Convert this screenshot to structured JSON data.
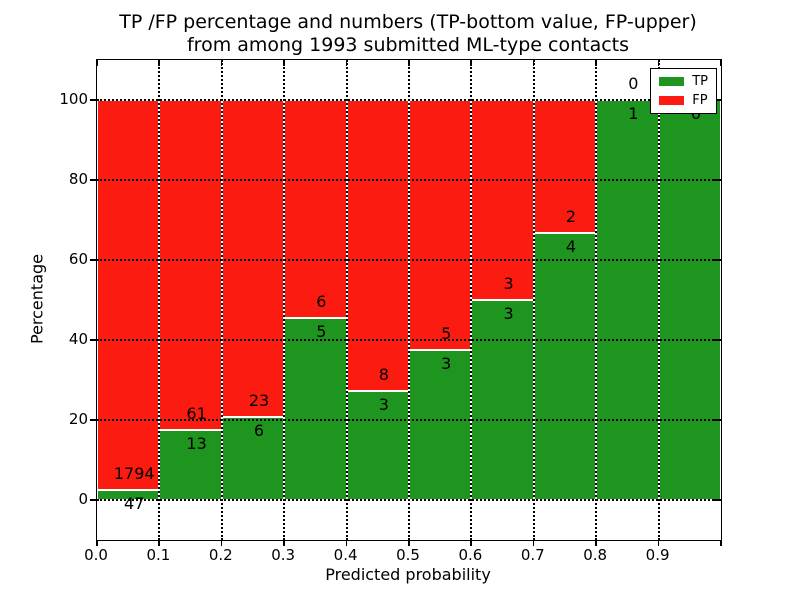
{
  "title": {
    "line1": "TP /FP percentage and numbers (TP-bottom value, FP-upper)",
    "line2": "from among 1993 submitted ML-type contacts"
  },
  "axes": {
    "xlabel": "Predicted probability",
    "ylabel": "Percentage",
    "xtick_labels": [
      "0.0",
      "0.1",
      "0.2",
      "0.3",
      "0.4",
      "0.5",
      "0.6",
      "0.7",
      "0.8",
      "0.9"
    ],
    "ytick_values": [
      0,
      20,
      40,
      60,
      80,
      100
    ]
  },
  "legend": {
    "entries": [
      {
        "label": "TP",
        "color": "#1e951e"
      },
      {
        "label": "FP",
        "color": "#fb1b10"
      }
    ],
    "position": "upper right"
  },
  "colors": {
    "tp": "#1e951e",
    "fp": "#fb1b10",
    "background": "#ffffff",
    "text": "#000000",
    "bar_edge": "#ffffff",
    "grid": "#000000"
  },
  "chart_data": {
    "type": "bar",
    "stacked": true,
    "normalized_to_percent": true,
    "title": "TP /FP percentage and numbers (TP-bottom value, FP-upper) from among 1993 submitted ML-type contacts",
    "xlabel": "Predicted probability",
    "ylabel": "Percentage",
    "bins": [
      "0.0-0.1",
      "0.1-0.2",
      "0.2-0.3",
      "0.3-0.4",
      "0.4-0.5",
      "0.5-0.6",
      "0.6-0.7",
      "0.7-0.8",
      "0.8-0.9",
      "0.9-1.0"
    ],
    "series": [
      {
        "name": "TP",
        "counts": [
          47,
          13,
          6,
          5,
          3,
          3,
          3,
          4,
          1,
          6
        ]
      },
      {
        "name": "FP",
        "counts": [
          1794,
          61,
          23,
          6,
          8,
          5,
          3,
          2,
          0,
          0
        ]
      }
    ],
    "tp_percent": [
      2.55,
      17.57,
      20.69,
      45.45,
      27.27,
      37.5,
      50.0,
      66.67,
      100.0,
      100.0
    ],
    "fp_percent": [
      97.45,
      82.43,
      79.31,
      54.55,
      72.73,
      62.5,
      50.0,
      33.33,
      0.0,
      0.0
    ],
    "total_contacts": 1993,
    "xlim": [
      0.0,
      1.0
    ],
    "ylim": [
      -10,
      110
    ],
    "grid": "dotted both axes, drawn above bars",
    "legend_position": "upper right"
  }
}
